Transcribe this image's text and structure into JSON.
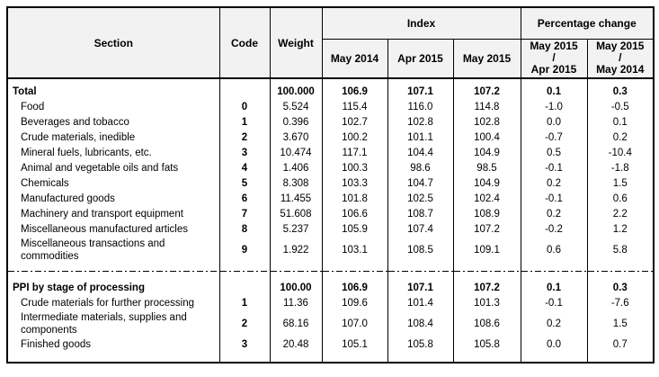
{
  "table": {
    "headers": {
      "section": "Section",
      "code": "Code",
      "weight": "Weight",
      "index_group": "Index",
      "pct_group": "Percentage change",
      "index_cols": [
        "May 2014",
        "Apr 2015",
        "May 2015"
      ],
      "pct_cols": [
        "May 2015\n/\nApr 2015",
        "May 2015\n/\nMay 2014"
      ]
    },
    "sections": [
      {
        "rows": [
          {
            "section": "Total",
            "code": "",
            "weight": "100.000",
            "index": [
              "106.9",
              "107.1",
              "107.2"
            ],
            "pct": [
              "0.1",
              "0.3"
            ],
            "bold": true
          },
          {
            "section": "Food",
            "code": "0",
            "weight": "5.524",
            "index": [
              "115.4",
              "116.0",
              "114.8"
            ],
            "pct": [
              "-1.0",
              "-0.5"
            ],
            "bold": false
          },
          {
            "section": "Beverages and tobacco",
            "code": "1",
            "weight": "0.396",
            "index": [
              "102.7",
              "102.8",
              "102.8"
            ],
            "pct": [
              "0.0",
              "0.1"
            ],
            "bold": false
          },
          {
            "section": "Crude materials, inedible",
            "code": "2",
            "weight": "3.670",
            "index": [
              "100.2",
              "101.1",
              "100.4"
            ],
            "pct": [
              "-0.7",
              "0.2"
            ],
            "bold": false
          },
          {
            "section": "Mineral fuels, lubricants, etc.",
            "code": "3",
            "weight": "10.474",
            "index": [
              "117.1",
              "104.4",
              "104.9"
            ],
            "pct": [
              "0.5",
              "-10.4"
            ],
            "bold": false
          },
          {
            "section": "Animal and vegetable oils and fats",
            "code": "4",
            "weight": "1.406",
            "index": [
              "100.3",
              "98.6",
              "98.5"
            ],
            "pct": [
              "-0.1",
              "-1.8"
            ],
            "bold": false
          },
          {
            "section": "Chemicals",
            "code": "5",
            "weight": "8.308",
            "index": [
              "103.3",
              "104.7",
              "104.9"
            ],
            "pct": [
              "0.2",
              "1.5"
            ],
            "bold": false
          },
          {
            "section": "Manufactured goods",
            "code": "6",
            "weight": "11.455",
            "index": [
              "101.8",
              "102.5",
              "102.4"
            ],
            "pct": [
              "-0.1",
              "0.6"
            ],
            "bold": false
          },
          {
            "section": "Machinery and transport equipment",
            "code": "7",
            "weight": "51.608",
            "index": [
              "106.6",
              "108.7",
              "108.9"
            ],
            "pct": [
              "0.2",
              "2.2"
            ],
            "bold": false
          },
          {
            "section": "Miscellaneous manufactured articles",
            "code": "8",
            "weight": "5.237",
            "index": [
              "105.9",
              "107.4",
              "107.2"
            ],
            "pct": [
              "-0.2",
              "1.2"
            ],
            "bold": false
          },
          {
            "section": "Miscellaneous transactions and commodities",
            "code": "9",
            "weight": "1.922",
            "index": [
              "103.1",
              "108.5",
              "109.1"
            ],
            "pct": [
              "0.6",
              "5.8"
            ],
            "bold": false
          }
        ]
      },
      {
        "rows": [
          {
            "section": "PPI by stage of processing",
            "code": "",
            "weight": "100.00",
            "index": [
              "106.9",
              "107.1",
              "107.2"
            ],
            "pct": [
              "0.1",
              "0.3"
            ],
            "bold": true
          },
          {
            "section": "Crude materials for further processing",
            "code": "1",
            "weight": "11.36",
            "index": [
              "109.6",
              "101.4",
              "101.3"
            ],
            "pct": [
              "-0.1",
              "-7.6"
            ],
            "bold": false
          },
          {
            "section": "Intermediate materials, supplies and components",
            "code": "2",
            "weight": "68.16",
            "index": [
              "107.0",
              "108.4",
              "108.6"
            ],
            "pct": [
              "0.2",
              "1.5"
            ],
            "bold": false
          },
          {
            "section": "Finished goods",
            "code": "3",
            "weight": "20.48",
            "index": [
              "105.1",
              "105.8",
              "105.8"
            ],
            "pct": [
              "0.0",
              "0.7"
            ],
            "bold": false
          }
        ]
      }
    ]
  },
  "colors": {
    "border": "#000000",
    "text": "#000000",
    "header_background": "#f2f2f2",
    "background": "#ffffff"
  }
}
